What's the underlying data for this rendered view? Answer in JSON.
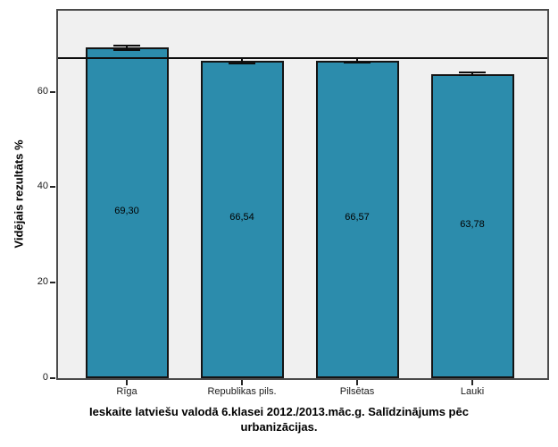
{
  "chart_data": {
    "type": "bar",
    "title": "Ieskaite latviešu valodā 6.klasei 2012./2013.māc.g. Salīdzinājums pēc urbanizācijas.",
    "ylabel": "Vidējais rezultāts %",
    "xlabel": "",
    "categories": [
      "Rīga",
      "Republikas pils.",
      "Pilsētas",
      "Lauki"
    ],
    "values": [
      69.3,
      66.54,
      66.57,
      63.78
    ],
    "value_labels": [
      "69,30",
      "66,54",
      "66,57",
      "63,78"
    ],
    "errors": [
      0.65,
      0.7,
      0.6,
      0.55
    ],
    "y_ticks": [
      0,
      20,
      40,
      60
    ],
    "ylim": [
      0,
      77
    ],
    "reference_line_y": 67,
    "grid": false,
    "legend": false,
    "colors": {
      "bar_fill": "#2c8cac",
      "bar_border": "#141414",
      "plot_background": "#f0f0f0",
      "frame_border": "#4b4b4b",
      "reference_line": "#0d0d0d",
      "text": "#000000"
    }
  }
}
